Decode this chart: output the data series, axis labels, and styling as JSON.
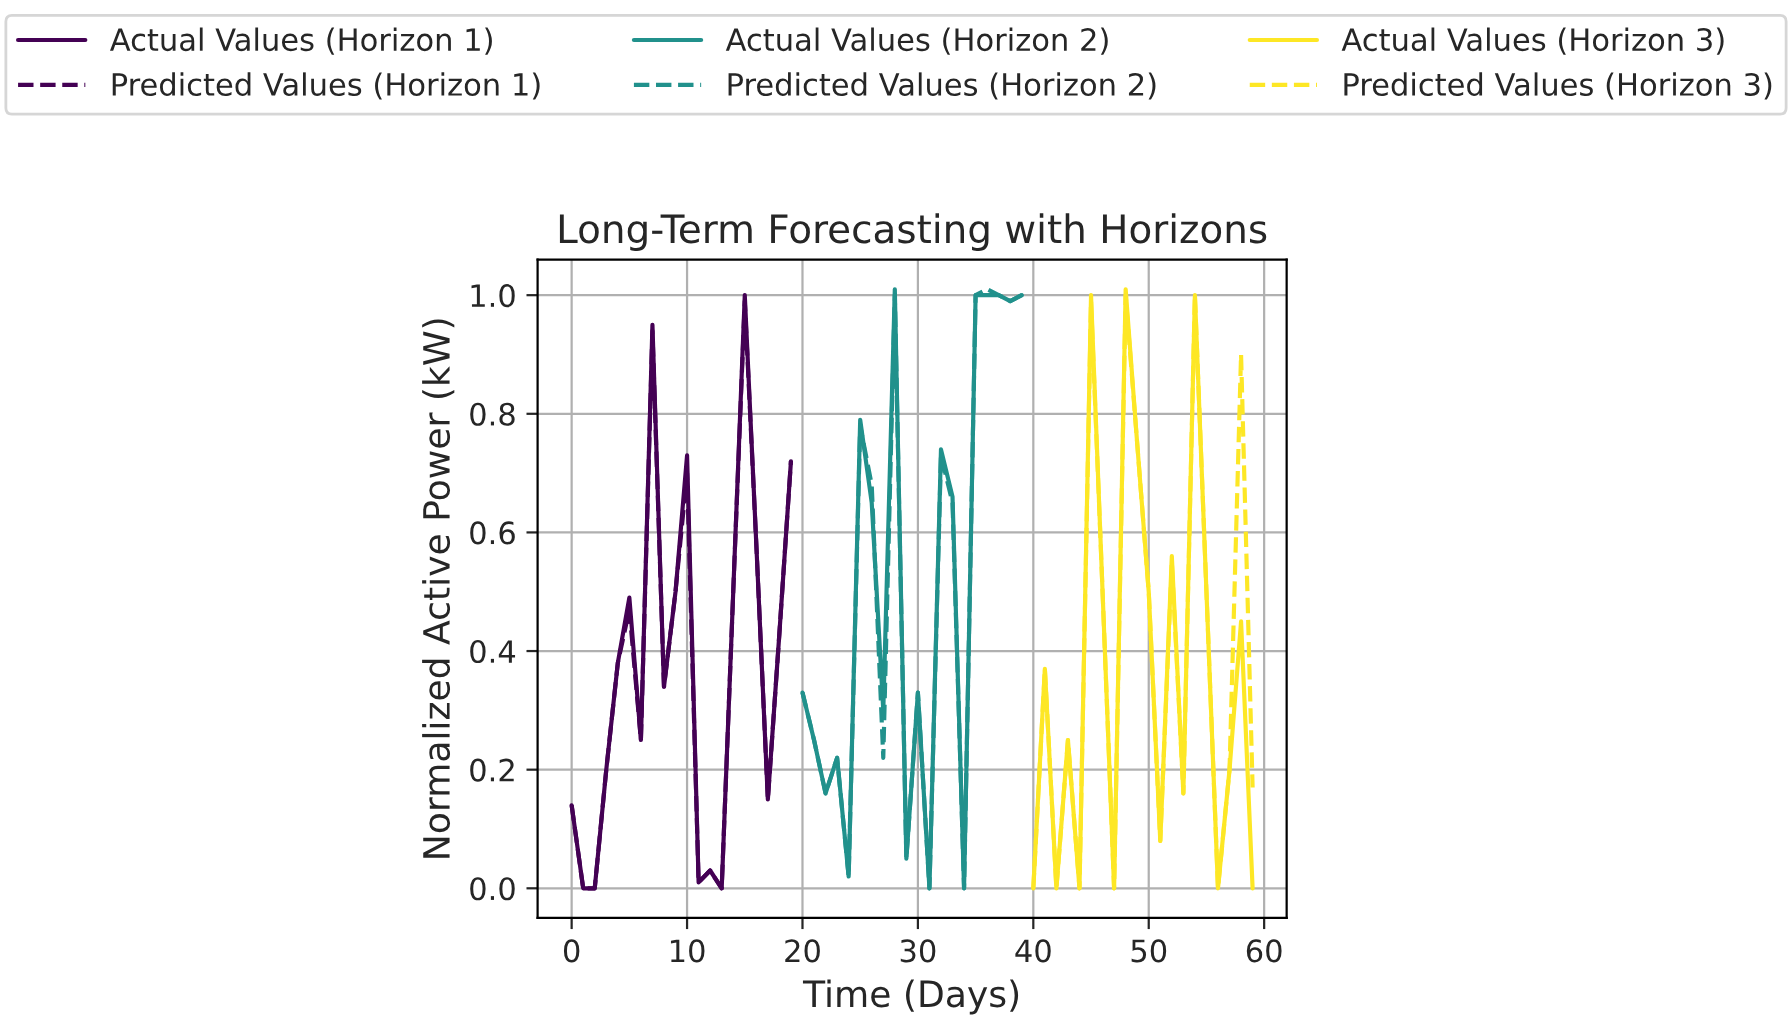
{
  "chart_data": {
    "type": "line",
    "title": "Long-Term Forecasting with Horizons",
    "xlabel": "Time (Days)",
    "ylabel": "Normalized Active Power (kW)",
    "xlim": [
      -2.95,
      61.95
    ],
    "ylim": [
      -0.05,
      1.06
    ],
    "xticks": [
      0,
      10,
      20,
      30,
      40,
      50,
      60
    ],
    "yticks": [
      {
        "value": 0,
        "label": "0.0"
      },
      {
        "value": 0.2,
        "label": "0.2"
      },
      {
        "value": 0.4,
        "label": "0.4"
      },
      {
        "value": 0.6,
        "label": "0.6"
      },
      {
        "value": 0.8,
        "label": "0.8"
      },
      {
        "value": 1,
        "label": "1.0"
      }
    ],
    "grid": true,
    "legend": "top",
    "marker": "none",
    "series": [
      {
        "name": "Actual Values (Horizon 1)",
        "color": "#440154",
        "line_style": "solid",
        "x": [
          0,
          1,
          2,
          3,
          4,
          5,
          6,
          7,
          8,
          9,
          10,
          11,
          12,
          13,
          14,
          15,
          16,
          17,
          18,
          19
        ],
        "values": [
          0.14,
          0,
          0,
          0.2,
          0.38,
          0.49,
          0.25,
          0.95,
          0.34,
          0.5,
          0.73,
          0.01,
          0.03,
          0,
          0.5,
          1.0,
          0.58,
          0.15,
          0.43,
          0.72
        ]
      },
      {
        "name": "Predicted Values (Horizon 1)",
        "color": "#440154",
        "line_style": "dashed",
        "x": [
          0,
          1,
          2,
          3,
          4,
          5,
          6,
          7,
          8,
          9,
          10,
          11,
          12,
          13,
          14,
          15,
          16,
          17,
          18,
          19
        ],
        "values": [
          0.14,
          0,
          0,
          0.2,
          0.38,
          0.47,
          0.25,
          0.94,
          0.34,
          0.5,
          0.7,
          0.01,
          0.03,
          0,
          0.5,
          0.99,
          0.58,
          0.15,
          0.43,
          0.72
        ]
      },
      {
        "name": "Actual Values (Horizon 2)",
        "color": "#21918c",
        "line_style": "solid",
        "x": [
          20,
          21,
          22,
          23,
          24,
          25,
          26,
          27,
          28,
          29,
          30,
          31,
          32,
          33,
          34,
          35,
          36,
          37,
          38,
          39
        ],
        "values": [
          0.33,
          0.25,
          0.16,
          0.22,
          0.02,
          0.79,
          0.65,
          0.3,
          1.01,
          0.05,
          0.33,
          0,
          0.74,
          0.66,
          0,
          1.0,
          1.0,
          1.0,
          0.99,
          1.0
        ]
      },
      {
        "name": "Predicted Values (Horizon 2)",
        "color": "#21918c",
        "line_style": "dashed",
        "x": [
          20,
          21,
          22,
          23,
          24,
          25,
          26,
          27,
          28,
          29,
          30,
          31,
          32,
          33,
          34,
          35,
          36,
          37,
          38,
          39
        ],
        "values": [
          0.33,
          0.25,
          0.16,
          0.22,
          0.02,
          0.78,
          0.68,
          0.22,
          1.0,
          0.05,
          0.33,
          0,
          0.73,
          0.65,
          0,
          1.0,
          1.01,
          1.0,
          0.99,
          1.0
        ]
      },
      {
        "name": "Actual Values (Horizon 3)",
        "color": "#fde725",
        "line_style": "solid",
        "x": [
          40,
          41,
          42,
          43,
          44,
          45,
          46,
          47,
          48,
          49,
          50,
          51,
          52,
          53,
          54,
          55,
          56,
          57,
          58,
          59
        ],
        "values": [
          0,
          0.37,
          0,
          0.25,
          0,
          1.0,
          0.5,
          0,
          1.01,
          0.75,
          0.5,
          0.08,
          0.56,
          0.16,
          1.0,
          0.5,
          0,
          0.2,
          0.45,
          0
        ]
      },
      {
        "name": "Predicted Values (Horizon 3)",
        "color": "#fde725",
        "line_style": "dashed",
        "x": [
          40,
          41,
          42,
          43,
          44,
          45,
          46,
          47,
          48,
          49,
          50,
          51,
          52,
          53,
          54,
          55,
          56,
          57,
          58,
          59
        ],
        "values": [
          0,
          0.37,
          0,
          0.25,
          0,
          0.99,
          0.5,
          0,
          1.0,
          0.75,
          0.5,
          0.08,
          0.55,
          0.16,
          1.0,
          0.5,
          0,
          0.2,
          0.9,
          0.17
        ]
      }
    ]
  }
}
